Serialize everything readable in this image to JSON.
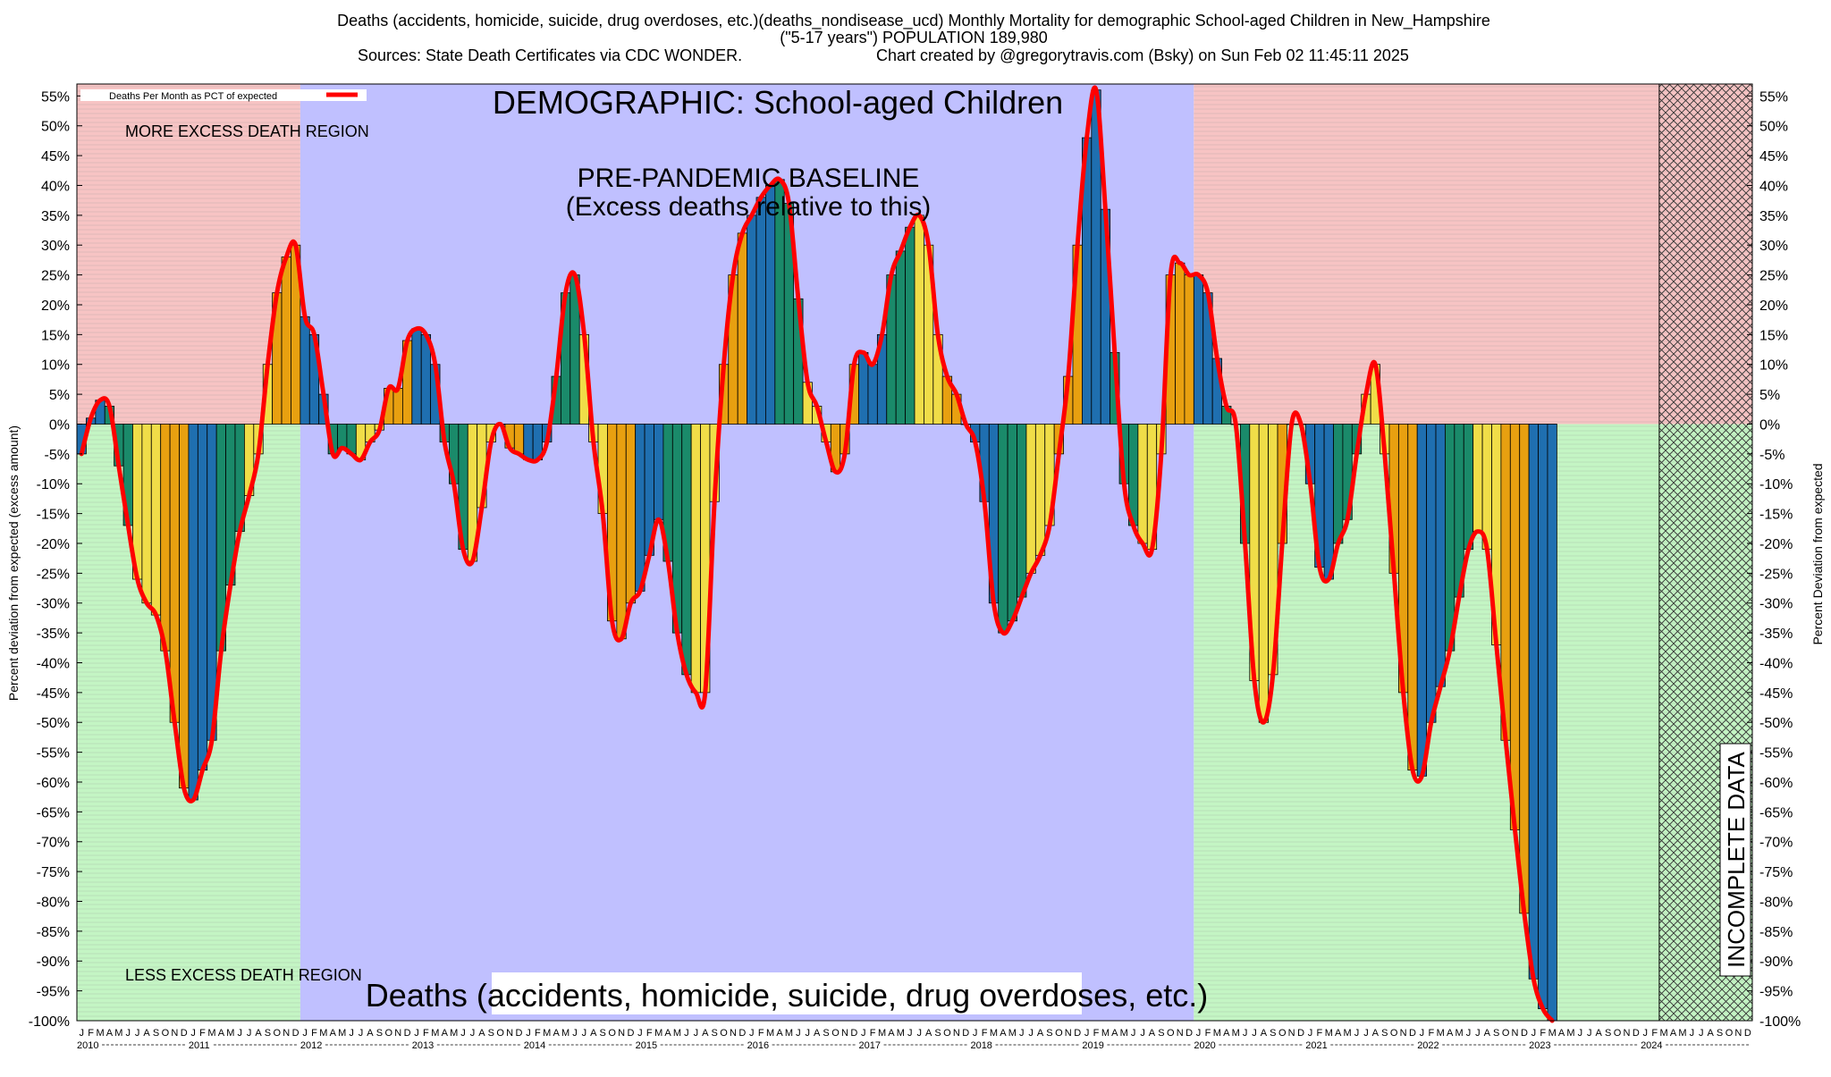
{
  "chart_data": {
    "type": "bar",
    "title_lines": [
      "Deaths (accidents, homicide, suicide, drug overdoses, etc.)(deaths_nondisease_ucd) Monthly Mortality for demographic School-aged Children in New_Hampshire",
      "(\"5-17 years\") POPULATION 189,980",
      "Sources: State Death Certificates via CDC WONDER.",
      "Chart created by @gregorytravis.com (Bsky) on Sun Feb 02 11:45:11 2025"
    ],
    "ylabel_left": "Percent deviation from expected (excess amount)",
    "ylabel_right": "Percent Deviation from expected",
    "ylim": [
      -100,
      57
    ],
    "yticks": [
      55,
      50,
      45,
      40,
      35,
      30,
      25,
      20,
      15,
      10,
      5,
      0,
      -5,
      -10,
      -15,
      -20,
      -25,
      -30,
      -35,
      -40,
      -45,
      -50,
      -55,
      -60,
      -65,
      -70,
      -75,
      -80,
      -85,
      -90,
      -95,
      -100
    ],
    "ytick_suffix": "%",
    "legend": {
      "label": "Deaths Per Month as PCT of expected",
      "color": "#ff0000",
      "position": "top-left"
    },
    "month_letters": [
      "J",
      "F",
      "M",
      "A",
      "M",
      "J",
      "J",
      "A",
      "S",
      "O",
      "N",
      "D"
    ],
    "years": [
      "2010",
      "2011",
      "2012",
      "2013",
      "2014",
      "2015",
      "2016",
      "2017",
      "2018",
      "2019",
      "2020",
      "2021",
      "2022",
      "2023",
      "2024"
    ],
    "annotations": {
      "demographic": "DEMOGRAPHIC: School-aged Children",
      "more_region": "MORE EXCESS DEATH REGION",
      "less_region": "LESS EXCESS DEATH REGION",
      "baseline_line1": "PRE-PANDEMIC BASELINE",
      "baseline_line2": "(Excess deaths relative to this)",
      "bottom_label": "Deaths (accidents, homicide, suicide, drug overdoses, etc.)",
      "incomplete": "INCOMPLETE DATA"
    },
    "regions": {
      "baseline_start": "2012-01",
      "baseline_end": "2019-12",
      "incomplete_start": "2024-03"
    },
    "colors": {
      "bar_cycle": [
        "#1f6fb0",
        "#1a8a6a",
        "#f0dd48",
        "#e8a010"
      ],
      "line": "#ff0000",
      "pink_region": "#f7c4c4",
      "green_region": "#c4f5c4",
      "baseline_region": "#c0c0ff"
    },
    "series": [
      {
        "name": "Deaths Per Month as PCT of expected",
        "start": "2010-01",
        "values": [
          -5,
          1,
          4,
          3,
          -7,
          -17,
          -26,
          -30,
          -32,
          -38,
          -50,
          -61,
          -63,
          -58,
          -53,
          -38,
          -27,
          -18,
          -12,
          -5,
          10,
          22,
          28,
          30,
          18,
          15,
          5,
          -5,
          -4,
          -5,
          -6,
          -3,
          -1,
          6,
          6,
          14,
          16,
          15,
          10,
          -3,
          -10,
          -21,
          -23,
          -14,
          -3,
          0,
          -4,
          -5,
          -6,
          -6,
          -3,
          8,
          22,
          25,
          15,
          -3,
          -15,
          -33,
          -36,
          -30,
          -28,
          -22,
          -16,
          -23,
          -35,
          -42,
          -45,
          -45,
          -13,
          10,
          25,
          32,
          35,
          38,
          40,
          41,
          37,
          21,
          7,
          3,
          -3,
          -8,
          -5,
          10,
          12,
          10,
          15,
          25,
          29,
          33,
          35,
          30,
          15,
          8,
          5,
          0,
          -3,
          -13,
          -30,
          -35,
          -33,
          -29,
          -25,
          -22,
          -17,
          -5,
          8,
          30,
          48,
          56,
          36,
          12,
          -10,
          -17,
          -20,
          -21,
          -5,
          25,
          27,
          25,
          25,
          22,
          11,
          3,
          0,
          -20,
          -43,
          -50,
          -42,
          -20,
          0,
          0,
          -10,
          -24,
          -26,
          -20,
          -16,
          -5,
          5,
          10,
          -5,
          -25,
          -45,
          -58,
          -59,
          -50,
          -44,
          -38,
          -29,
          -21,
          -18,
          -21,
          -37,
          -53,
          -68,
          -82,
          -93,
          -98,
          -100
        ]
      }
    ]
  }
}
